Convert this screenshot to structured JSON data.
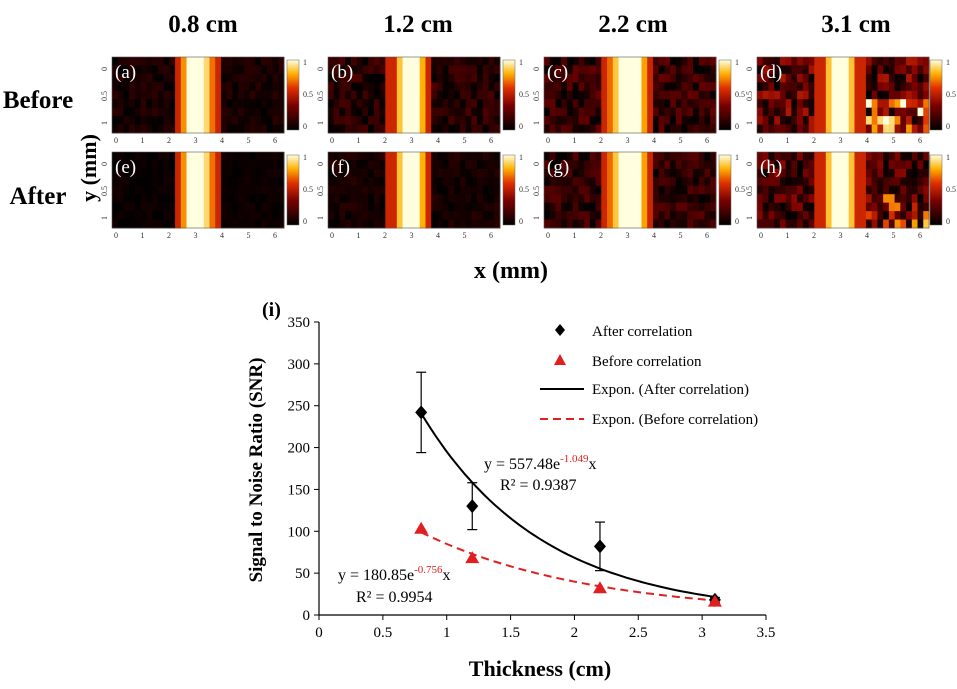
{
  "heatmap_grid": {
    "column_titles": [
      "0.8 cm",
      "1.2 cm",
      "2.2 cm",
      "3.1 cm"
    ],
    "row_titles": [
      "Before",
      "After"
    ],
    "panel_labels": [
      "(a)",
      "(b)",
      "(c)",
      "(d)",
      "(e)",
      "(f)",
      "(g)",
      "(h)"
    ],
    "y_axis_label": "y (mm)",
    "x_axis_label": "x (mm)",
    "x_ticks": [
      "0",
      "1",
      "2",
      "3",
      "4",
      "5",
      "6"
    ],
    "y_ticks": [
      "0",
      "0.5",
      "1"
    ],
    "colorbar_ticks": [
      "1",
      "0.5",
      "0"
    ],
    "colors": {
      "cmap_low": "#000000",
      "cmap_mid": "#c81400",
      "cmap_high": "#ffffe0"
    }
  },
  "chart_data": {
    "type": "scatter",
    "panel_label": "(i)",
    "xlabel": "Thickness (cm)",
    "ylabel": "Signal to Noise Ratio (SNR)",
    "xlim": [
      0,
      3.5
    ],
    "ylim": [
      0,
      350
    ],
    "x_ticks": [
      0,
      0.5,
      1,
      1.5,
      2,
      2.5,
      3,
      3.5
    ],
    "x_tick_labels": [
      "0",
      "0.5",
      "1",
      "1.5",
      "2",
      "2.5",
      "3",
      "3.5"
    ],
    "y_ticks": [
      0,
      50,
      100,
      150,
      200,
      250,
      300,
      350
    ],
    "y_tick_labels": [
      "0",
      "50",
      "100",
      "150",
      "200",
      "250",
      "300",
      "350"
    ],
    "legend_position": "top-right",
    "series": [
      {
        "name": "After correlation",
        "marker": "diamond",
        "color": "#000000",
        "x": [
          0.8,
          1.2,
          2.2,
          3.1
        ],
        "y": [
          242,
          130,
          82,
          18
        ],
        "err": [
          48,
          28,
          29,
          3
        ]
      },
      {
        "name": "Before correlation",
        "marker": "triangle",
        "color": "#e02020",
        "x": [
          0.8,
          1.2,
          2.2,
          3.1
        ],
        "y": [
          103,
          68,
          32,
          16
        ],
        "err": [
          0,
          0,
          0,
          0
        ]
      }
    ],
    "fits": [
      {
        "name": "Expon. (After correlation)",
        "a": 557.48,
        "b": 1.049,
        "style": "solid",
        "color": "#000000",
        "x_range": [
          0.8,
          3.1
        ],
        "equation_prefix": "y = 557.48e",
        "equation_exponent": "-1.049",
        "equation_suffix": "x",
        "r2_label": "R² = 0.9387"
      },
      {
        "name": "Expon. (Before correlation)",
        "a": 180.85,
        "b": 0.756,
        "style": "dashed",
        "color": "#e02020",
        "x_range": [
          0.8,
          3.1
        ],
        "equation_prefix": "y = 180.85e",
        "equation_exponent": "-0.756",
        "equation_suffix": "x",
        "r2_label": "R² = 0.9954"
      }
    ],
    "exponent_color": "#e02020"
  }
}
